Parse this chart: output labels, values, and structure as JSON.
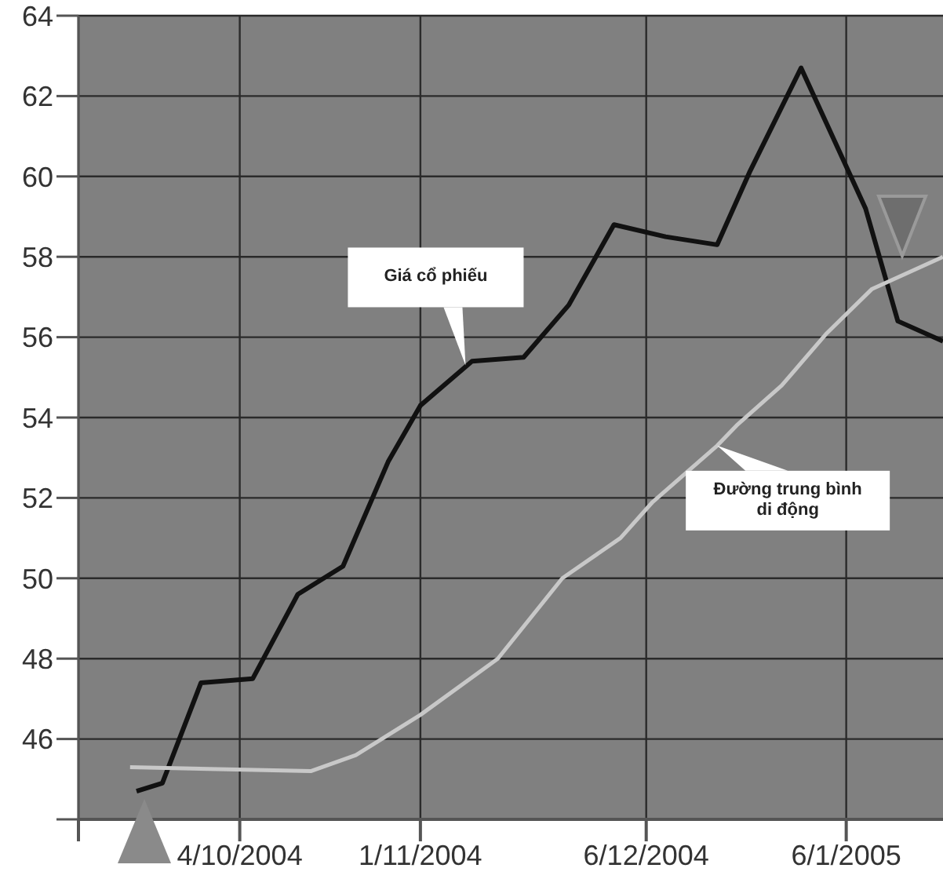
{
  "chart_data": {
    "type": "line",
    "xlim": [
      "2004-09-09",
      "2005-01-21"
    ],
    "xticks": [
      {
        "value": "2004-09-09",
        "label": null
      },
      {
        "value": "2004-10-04",
        "label": "4/10/2004"
      },
      {
        "value": "2004-11-01",
        "label": "1/11/2004"
      },
      {
        "value": "2004-12-06",
        "label": "6/12/2004"
      },
      {
        "value": "2005-01-06",
        "label": "6/1/2005"
      }
    ],
    "ylim": [
      44,
      64
    ],
    "yticks": [
      {
        "value": 44,
        "label": null
      },
      46,
      48,
      50,
      52,
      54,
      56,
      58,
      60,
      62,
      64
    ],
    "grid": true,
    "marker": "none",
    "line_style": "solid",
    "series": [
      {
        "color": "#111111",
        "x": [
          "2004-09-18",
          "2004-09-22",
          "2004-09-28",
          "2004-10-06",
          "2004-10-13",
          "2004-10-20",
          "2004-10-27",
          "2004-11-01",
          "2004-11-09",
          "2004-11-17",
          "2004-11-24",
          "2004-12-01",
          "2004-12-09",
          "2004-12-17",
          "2004-12-22",
          "2004-12-30",
          "2005-01-09",
          "2005-01-14",
          "2005-01-21"
        ],
        "values": [
          44.7,
          44.9,
          47.4,
          47.5,
          49.6,
          50.3,
          52.9,
          54.3,
          55.4,
          55.5,
          56.8,
          58.8,
          58.5,
          58.3,
          60.1,
          62.7,
          59.2,
          56.4,
          55.9
        ]
      },
      {
        "color": "#c8c8c8",
        "x": [
          "2004-09-17",
          "2004-10-15",
          "2004-10-22",
          "2004-11-01",
          "2004-11-13",
          "2004-11-23",
          "2004-12-02",
          "2004-12-07",
          "2004-12-17",
          "2004-12-20",
          "2004-12-27",
          "2005-01-03",
          "2005-01-10",
          "2005-01-21"
        ],
        "values": [
          45.3,
          45.2,
          45.6,
          46.6,
          48.0,
          50.0,
          51.0,
          51.9,
          53.3,
          53.8,
          54.8,
          56.1,
          57.2,
          58.0
        ]
      }
    ],
    "annotations": [
      {
        "text": "Giá cổ phiếu",
        "x": "2004-11-08",
        "y": 55.3
      },
      {
        "text": "Đường trung bình di động",
        "x": "2004-12-17",
        "y": 53.3
      }
    ]
  }
}
